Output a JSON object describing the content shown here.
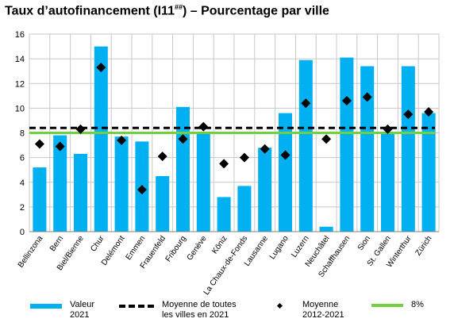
{
  "title_main": "Taux d’autofinancement (I11",
  "title_sup": "##",
  "title_rest": ") – Pourcentage par ville",
  "chart_data": {
    "type": "bar",
    "categories": [
      "Bellinzona",
      "Bern",
      "Biel/Bienne",
      "Chur",
      "Delémont",
      "Emmen",
      "Frauenfeld",
      "Fribourg",
      "Genève",
      "Köniz",
      "La Chaux-de-Fonds",
      "Lausanne",
      "Lugano",
      "Luzern",
      "Neuchâtel",
      "Schaffhausen",
      "Sion",
      "St. Gallen",
      "Winterthur",
      "Zürich"
    ],
    "series": [
      {
        "name": "Valeur 2021",
        "type": "bar",
        "color": "#00b0f0",
        "values": [
          5.2,
          7.8,
          6.3,
          15.0,
          7.7,
          7.3,
          4.5,
          10.1,
          8.0,
          2.8,
          3.7,
          6.8,
          9.6,
          13.9,
          0.4,
          14.1,
          13.4,
          8.0,
          13.4,
          9.6
        ]
      },
      {
        "name": "Moyenne 2012-2021",
        "type": "scatter",
        "color": "#000000",
        "values": [
          7.1,
          6.9,
          8.3,
          13.3,
          7.4,
          3.4,
          6.1,
          7.5,
          8.5,
          5.5,
          6.0,
          6.7,
          6.2,
          10.4,
          7.5,
          10.6,
          10.9,
          8.3,
          9.5,
          9.7
        ]
      }
    ],
    "reference_lines": [
      {
        "name": "Moyenne de toutes les villes en 2021",
        "value": 8.4,
        "style": "dashed",
        "color": "#000000"
      },
      {
        "name": "8%",
        "value": 8.0,
        "style": "solid",
        "color": "#70d040"
      }
    ],
    "ylim": [
      0,
      16
    ],
    "yticks": [
      0,
      2,
      4,
      6,
      8,
      10,
      12,
      14,
      16
    ],
    "grid": true,
    "legend_position": "bottom"
  },
  "legend": {
    "valeur_line1": "Valeur",
    "valeur_line2": "2021",
    "moyenne_all_line1": "Moyenne de toutes",
    "moyenne_all_line2": "les villes en 2021",
    "moyenne_line1": "Moyenne",
    "moyenne_line2": "2012-2021",
    "eight": "8%"
  }
}
